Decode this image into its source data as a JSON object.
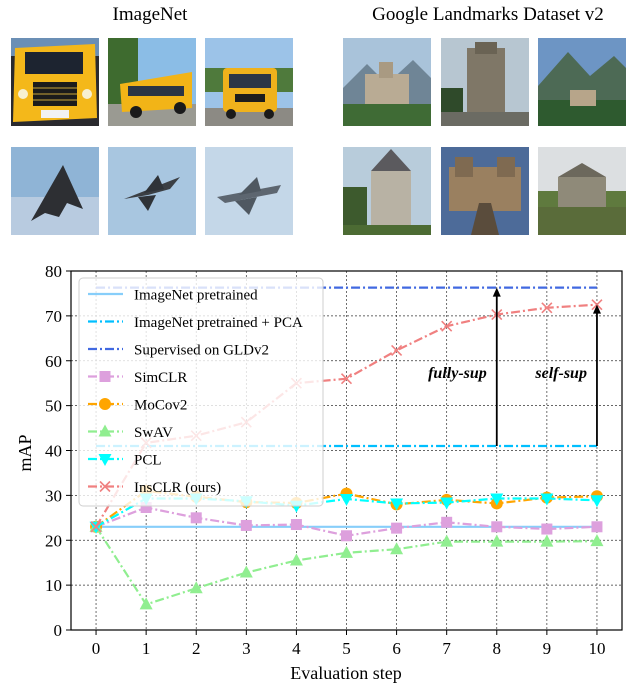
{
  "panels": {
    "left_title": "ImageNet",
    "right_title": "Google Landmarks Dataset v2",
    "left_images": [
      "school-bus-front",
      "school-bus-side",
      "school-bus-rear",
      "stealth-bomber",
      "jet-fighter",
      "jet-fighter-2"
    ],
    "right_images": [
      "castle-hotel",
      "castle-tower",
      "castle-mountains",
      "stone-castle",
      "castle-bridge",
      "ruined-manor"
    ]
  },
  "chart_data": {
    "type": "line",
    "xlabel": "Evaluation step",
    "ylabel": "mAP",
    "x": [
      0,
      1,
      2,
      3,
      4,
      5,
      6,
      7,
      8,
      9,
      10
    ],
    "xticks": [
      "0",
      "1",
      "2",
      "3",
      "4",
      "5",
      "6",
      "7",
      "8",
      "9",
      "10"
    ],
    "yticks": [
      "0",
      "10",
      "20",
      "30",
      "40",
      "50",
      "60",
      "70",
      "80"
    ],
    "xlim": [
      -0.5,
      10.5
    ],
    "ylim": [
      0,
      80
    ],
    "grid": true,
    "legend_position": "top-left",
    "series": [
      {
        "name": "ImageNet pretrained",
        "color": "#87cefa",
        "style": "solid",
        "marker": "none",
        "values": [
          23,
          23,
          23,
          23,
          23,
          23,
          23,
          23,
          23,
          23,
          23
        ]
      },
      {
        "name": "ImageNet pretrained + PCA",
        "color": "#00bfff",
        "style": "dashdot",
        "marker": "none",
        "values": [
          41,
          41,
          41,
          41,
          41,
          41,
          41,
          41,
          41,
          41,
          41
        ]
      },
      {
        "name": "Supervised on GLDv2",
        "color": "#4169e1",
        "style": "dashdot",
        "marker": "none",
        "values": [
          76.3,
          76.3,
          76.3,
          76.3,
          76.3,
          76.3,
          76.3,
          76.3,
          76.3,
          76.3,
          76.3
        ]
      },
      {
        "name": "SimCLR",
        "color": "#dda0dd",
        "style": "dashdot",
        "marker": "square",
        "values": [
          23,
          27.3,
          25,
          23.3,
          23.5,
          21,
          22.7,
          24,
          23,
          22.5,
          23
        ]
      },
      {
        "name": "MoCov2",
        "color": "#ffa500",
        "style": "dashdot",
        "marker": "circle",
        "values": [
          23,
          31,
          29.7,
          28.5,
          28.3,
          30.4,
          28,
          29,
          28.2,
          29.5,
          29.8
        ]
      },
      {
        "name": "SwAV",
        "color": "#90ee90",
        "style": "dashdot",
        "marker": "triangle-up",
        "values": [
          23,
          5.7,
          9.3,
          12.8,
          15.5,
          17.2,
          18,
          19.7,
          19.7,
          19.7,
          19.8
        ]
      },
      {
        "name": "PCL",
        "color": "#00ffff",
        "style": "dashdot",
        "marker": "triangle-down",
        "values": [
          23,
          29.3,
          29.3,
          28.7,
          27.7,
          29.2,
          28.2,
          28.4,
          29.3,
          29.3,
          28.9
        ]
      },
      {
        "name": "InsCLR (ours)",
        "color": "#f08080",
        "style": "dashdot",
        "marker": "x",
        "values": [
          23,
          41.7,
          43.3,
          46.3,
          55,
          56,
          62.3,
          67.7,
          70.3,
          71.8,
          72.5
        ]
      }
    ],
    "annotations": [
      {
        "text": "fully-sup",
        "x": 8,
        "from": 41,
        "to": 76.3
      },
      {
        "text": "self-sup",
        "x": 10,
        "from": 41,
        "to": 72.5
      }
    ]
  }
}
